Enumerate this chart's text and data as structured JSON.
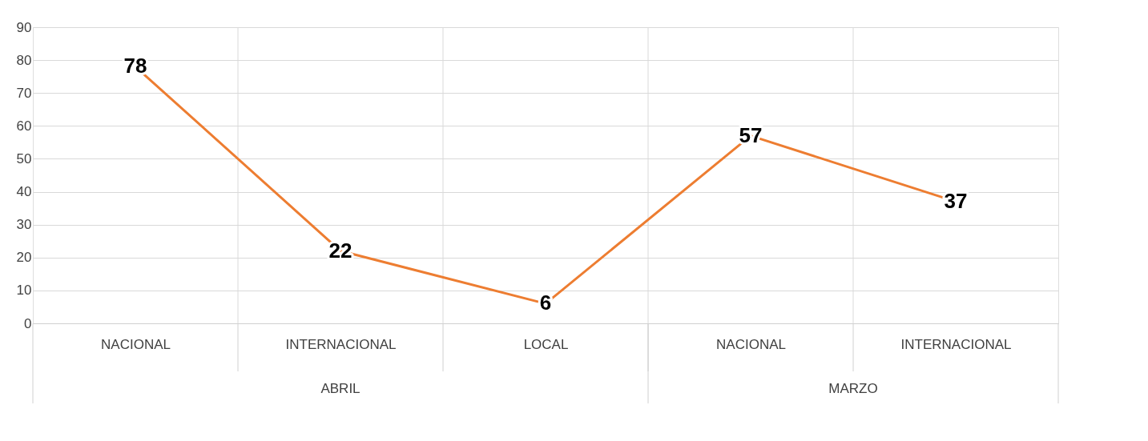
{
  "chart_data": {
    "type": "line",
    "categories": [
      "NACIONAL",
      "INTERNACIONAL",
      "LOCAL",
      "NACIONAL",
      "INTERNACIONAL"
    ],
    "series": [
      {
        "color": "#ed7d31",
        "values": [
          78,
          22,
          6,
          57,
          37
        ]
      }
    ],
    "ylim": [
      0,
      90
    ],
    "yticks": [
      0,
      10,
      20,
      30,
      40,
      50,
      60,
      70,
      80,
      90
    ],
    "grid": true,
    "data_labels": true,
    "marker": "none",
    "line_style": "solid",
    "annotations": [
      "ABRIL",
      "MARZO"
    ]
  }
}
